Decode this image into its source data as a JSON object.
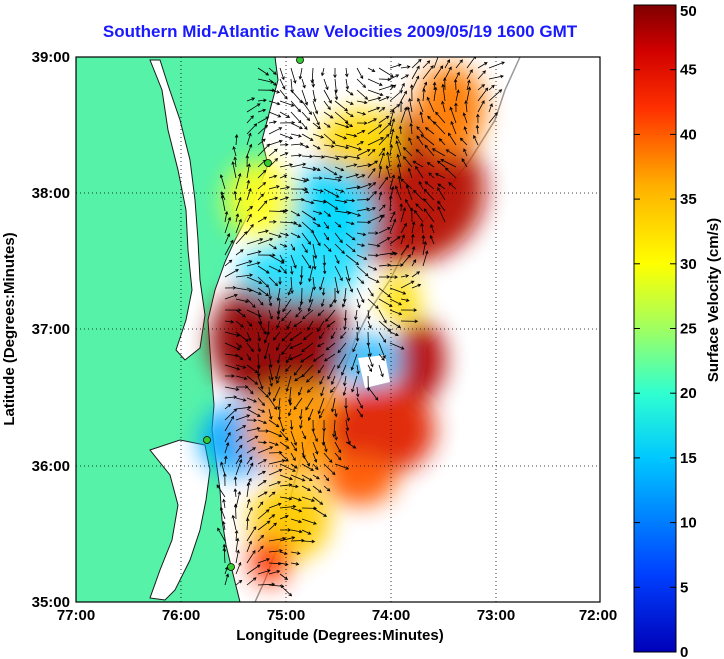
{
  "title": "Southern Mid-Atlantic Raw Velocities 2009/05/19 1600 GMT",
  "map": {
    "xlabel": "Longitude (Degrees:Minutes)",
    "ylabel": "Latitude (Degrees:Minutes)",
    "x_ticks": [
      "77:00",
      "76:00",
      "75:00",
      "74:00",
      "73:00",
      "72:00"
    ],
    "y_ticks": [
      "39:00",
      "38:00",
      "37:00",
      "36:00",
      "35:00"
    ],
    "lon_range": [
      -77,
      -72
    ],
    "lat_range": [
      35,
      39
    ],
    "land_color": "#55f2a8",
    "grid": "dotted"
  },
  "colorbar": {
    "label": "Surface Velocity (cm/s)",
    "ticks": [
      "50",
      "45",
      "40",
      "35",
      "30",
      "25",
      "20",
      "15",
      "10",
      "5",
      "0"
    ],
    "range": [
      0,
      50
    ],
    "colormap": "jet"
  },
  "chart_data": {
    "type": "heatmap",
    "title": "Southern Mid-Atlantic Raw Velocities 2009/05/19 1600 GMT",
    "xlabel": "Longitude (Degrees:Minutes)",
    "ylabel": "Latitude (Degrees:Minutes)",
    "xlim": [
      -77,
      -72
    ],
    "ylim": [
      35,
      39
    ],
    "colorbar_label": "Surface Velocity (cm/s)",
    "zlim": [
      0,
      50
    ],
    "regions": [
      {
        "lon": -75.0,
        "lat": 36.95,
        "speed": 48
      },
      {
        "lon": -74.2,
        "lat": 38.2,
        "speed": 45
      },
      {
        "lon": -73.9,
        "lat": 37.8,
        "speed": 42
      },
      {
        "lon": -74.7,
        "lat": 37.7,
        "speed": 15
      },
      {
        "lon": -74.9,
        "lat": 37.45,
        "speed": 12
      },
      {
        "lon": -75.5,
        "lat": 36.15,
        "speed": 8
      },
      {
        "lon": -74.2,
        "lat": 36.2,
        "speed": 38
      },
      {
        "lon": -74.5,
        "lat": 35.9,
        "speed": 30
      },
      {
        "lon": -73.7,
        "lat": 36.7,
        "speed": 44
      },
      {
        "lon": -74.3,
        "lat": 36.8,
        "speed": 14
      },
      {
        "lon": -73.6,
        "lat": 38.7,
        "speed": 40
      },
      {
        "lon": -74.7,
        "lat": 38.4,
        "speed": 26
      },
      {
        "lon": -75.3,
        "lat": 35.5,
        "speed": 22
      }
    ]
  }
}
